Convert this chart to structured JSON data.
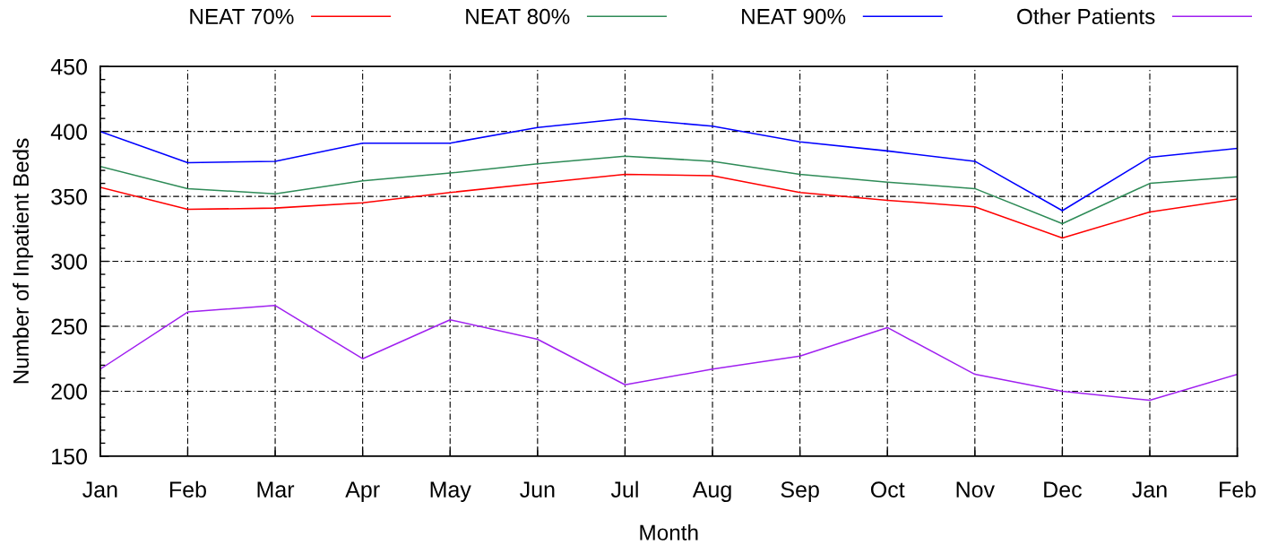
{
  "chart_data": {
    "type": "line",
    "xlabel": "Month",
    "ylabel": "Number of Inpatient Beds",
    "categories": [
      "Jan",
      "Feb",
      "Mar",
      "Apr",
      "May",
      "Jun",
      "Jul",
      "Aug",
      "Sep",
      "Oct",
      "Nov",
      "Dec",
      "Jan",
      "Feb"
    ],
    "series": [
      {
        "name": "NEAT 70%",
        "color": "#ff0000",
        "values": [
          357,
          340,
          341,
          345,
          353,
          360,
          367,
          366,
          353,
          347,
          342,
          318,
          338,
          348
        ]
      },
      {
        "name": "NEAT 80%",
        "color": "#2e8b57",
        "values": [
          373,
          356,
          352,
          362,
          368,
          375,
          381,
          377,
          367,
          361,
          356,
          329,
          360,
          365
        ]
      },
      {
        "name": "NEAT 90%",
        "color": "#0000ff",
        "values": [
          400,
          376,
          377,
          391,
          391,
          403,
          410,
          404,
          392,
          385,
          377,
          339,
          380,
          387
        ]
      },
      {
        "name": "Other Patients",
        "color": "#a020f0",
        "values": [
          217,
          261,
          266,
          225,
          255,
          240,
          205,
          217,
          227,
          249,
          213,
          200,
          193,
          213
        ]
      }
    ],
    "ylim": [
      150,
      450
    ],
    "yticks": [
      150,
      {
        "value": 160,
        "label": null
      },
      {
        "value": 170,
        "label": null
      },
      {
        "value": 180,
        "label": null
      },
      {
        "value": 190,
        "label": null
      },
      200,
      {
        "value": 210,
        "label": null
      },
      {
        "value": 220,
        "label": null
      },
      {
        "value": 230,
        "label": null
      },
      {
        "value": 240,
        "label": null
      },
      250,
      {
        "value": 260,
        "label": null
      },
      {
        "value": 270,
        "label": null
      },
      {
        "value": 280,
        "label": null
      },
      {
        "value": 290,
        "label": null
      },
      300,
      {
        "value": 310,
        "label": null
      },
      {
        "value": 320,
        "label": null
      },
      {
        "value": 330,
        "label": null
      },
      {
        "value": 340,
        "label": null
      },
      350,
      {
        "value": 360,
        "label": null
      },
      {
        "value": 370,
        "label": null
      },
      {
        "value": 380,
        "label": null
      },
      {
        "value": 390,
        "label": null
      },
      400,
      {
        "value": 410,
        "label": null
      },
      {
        "value": 420,
        "label": null
      },
      {
        "value": 430,
        "label": null
      },
      {
        "value": 440,
        "label": null
      },
      450
    ],
    "grid": true,
    "legend": "top"
  }
}
